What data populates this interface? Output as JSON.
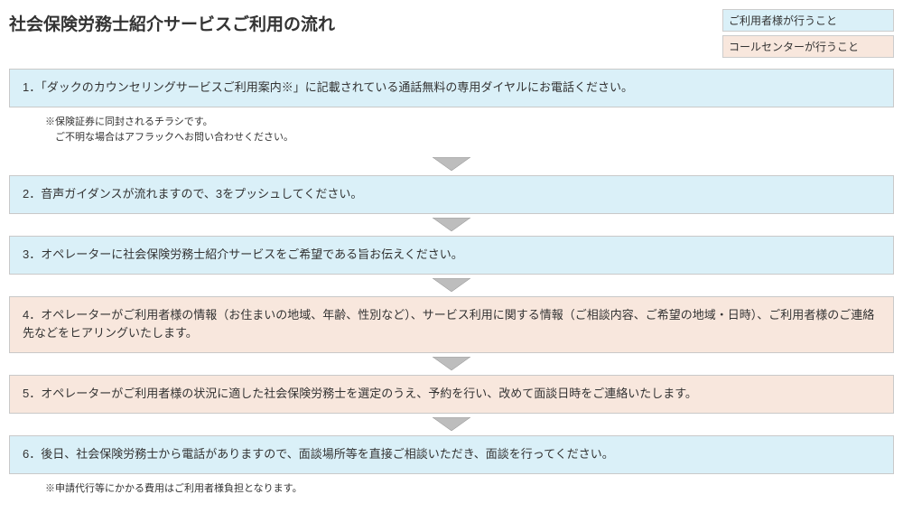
{
  "title": "社会保険労務士紹介サービスご利用の流れ",
  "legend": {
    "user": "ご利用者様が行うこと",
    "center": "コールセンターが行うこと"
  },
  "colors": {
    "user_bg": "#daf0f8",
    "center_bg": "#f8e7dd",
    "border": "#c9c9c9",
    "arrow_fill": "#bdbdbd",
    "arrow_stroke": "#8a8a8a",
    "text": "#333333"
  },
  "steps": [
    {
      "role": "user",
      "text": "1．「ダックのカウンセリングサービスご利用案内※」に記載されている通話無料の専用ダイヤルにお電話ください。",
      "note": "※保険証券に同封されるチラシです。\n　ご不明な場合はアフラックへお問い合わせください。"
    },
    {
      "role": "user",
      "text": "2．音声ガイダンスが流れますので、3をプッシュしてください。"
    },
    {
      "role": "user",
      "text": "3．オペレーターに社会保険労務士紹介サービスをご希望である旨お伝えください。"
    },
    {
      "role": "center",
      "text": "4．オペレーターがご利用者様の情報（お住まいの地域、年齢、性別など）、サービス利用に関する情報（ご相談内容、ご希望の地域・日時）、ご利用者様のご連絡先などをヒアリングいたします。"
    },
    {
      "role": "center",
      "text": "5．オペレーターがご利用者様の状況に適した社会保険労務士を選定のうえ、予約を行い、改めて面談日時をご連絡いたします。"
    },
    {
      "role": "user",
      "text": "6．後日、社会保険労務士から電話がありますので、面談場所等を直接ご相談いただき、面談を行ってください。",
      "note": "※申請代行等にかかる費用はご利用者様負担となります。"
    }
  ]
}
